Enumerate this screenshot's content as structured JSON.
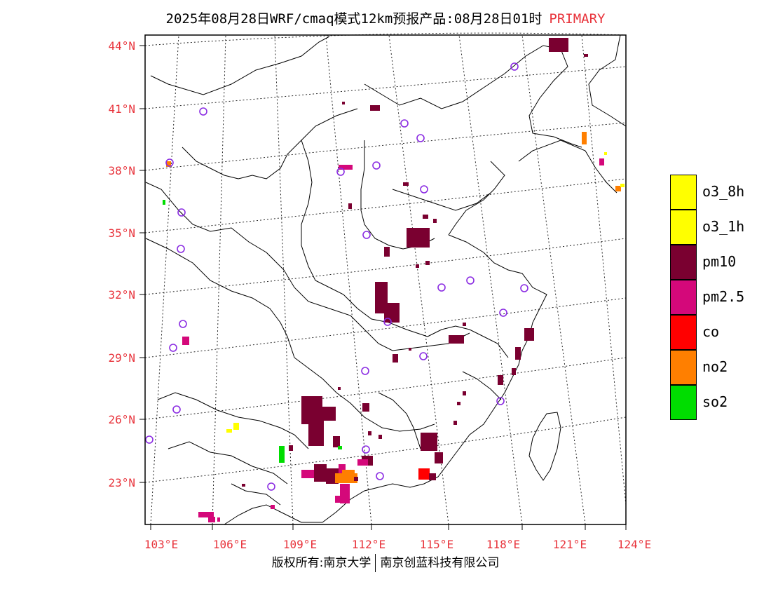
{
  "title": {
    "main": "2025年08月28日WRF/cmaq模式12km预报产品:08月28日01时",
    "tag": "PRIMARY"
  },
  "axes": {
    "lat_labels": [
      "44°N",
      "41°N",
      "38°N",
      "35°N",
      "32°N",
      "29°N",
      "26°N",
      "23°N"
    ],
    "lon_labels": [
      "103°E",
      "106°E",
      "109°E",
      "112°E",
      "115°E",
      "118°E",
      "121°E",
      "124°E"
    ]
  },
  "legend": [
    {
      "label": "o3_8h",
      "color": "#ffff00"
    },
    {
      "label": "o3_1h",
      "color": "#ffff00"
    },
    {
      "label": "pm10",
      "color": "#7a0030"
    },
    {
      "label": "pm2.5",
      "color": "#d4087a"
    },
    {
      "label": "co",
      "color": "#ff0000"
    },
    {
      "label": "no2",
      "color": "#ff7f00"
    },
    {
      "label": "so2",
      "color": "#00dd00"
    }
  ],
  "footer": {
    "left": "版权所有:南京大学",
    "right": "南京创蓝科技有限公司"
  }
}
